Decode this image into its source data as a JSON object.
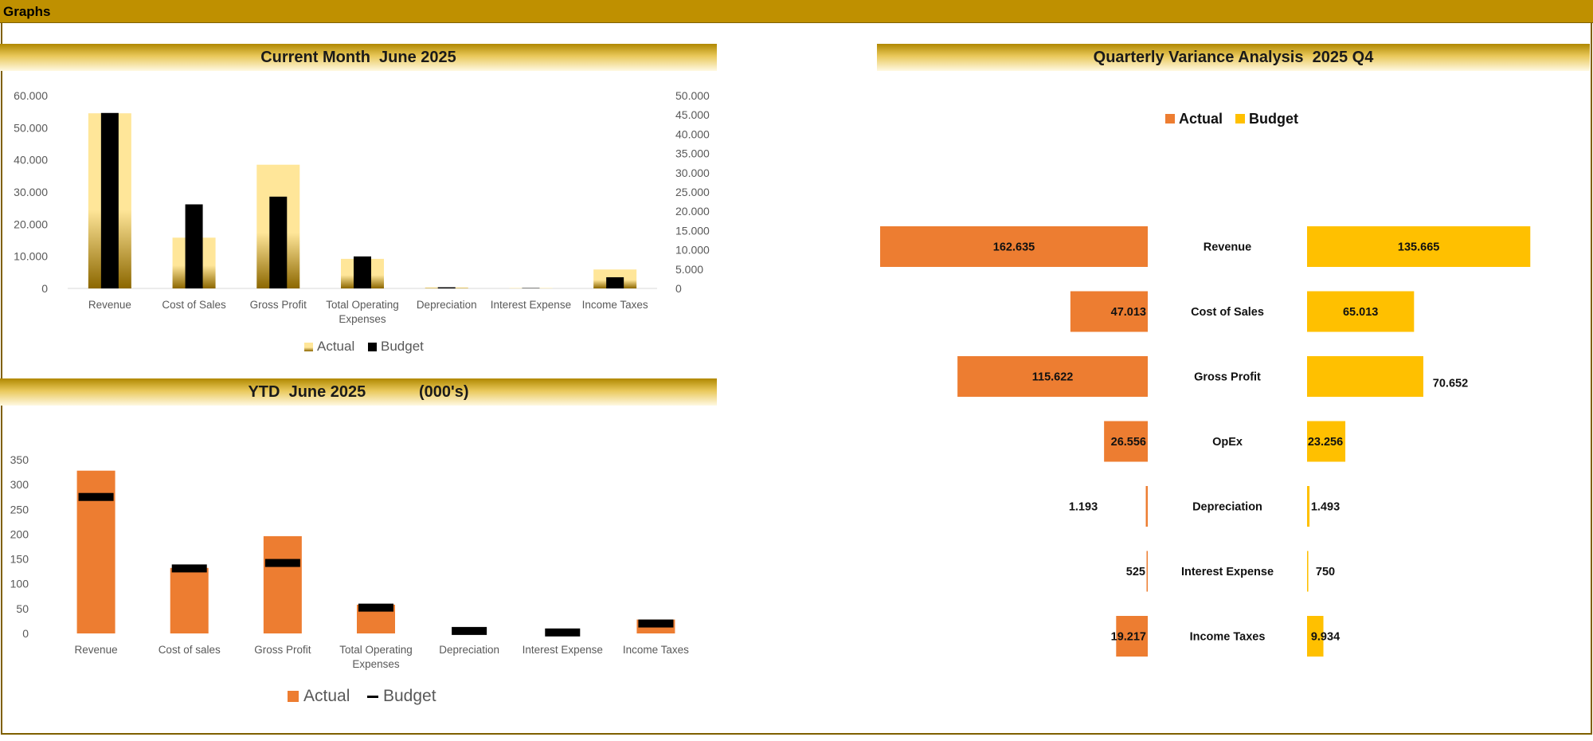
{
  "page_title": "Graphs",
  "colors": {
    "gold": "#bf9000",
    "orange": "#ed7d31",
    "yellow": "#ffc000",
    "black": "#000000"
  },
  "chart_data": [
    {
      "id": "current-month",
      "type": "bar",
      "title": "Current Month  June 2025",
      "categories": [
        "Revenue",
        "Cost of Sales",
        "Gross Profit",
        "Total Operating Expenses",
        "Depreciation",
        "Interest Expense",
        "Income Taxes"
      ],
      "y_left": {
        "ticks": [
          "0",
          "10.000",
          "20.000",
          "30.000",
          "40.000",
          "50.000",
          "60.000"
        ],
        "ylim": [
          0,
          60000
        ]
      },
      "y_right": {
        "ticks": [
          "0",
          "5.000",
          "10.000",
          "15.000",
          "20.000",
          "25.000",
          "30.000",
          "35.000",
          "40.000",
          "45.000",
          "50.000"
        ],
        "ylim": [
          0,
          50000
        ]
      },
      "series": [
        {
          "name": "Actual",
          "axis": "left",
          "values": [
            54500,
            15800,
            38500,
            9200,
            300,
            120,
            5900
          ]
        },
        {
          "name": "Budget",
          "axis": "right",
          "values": [
            45500,
            21800,
            23800,
            8300,
            300,
            100,
            2900
          ]
        }
      ],
      "legend": [
        "Actual",
        "Budget"
      ],
      "legend_position": "bottom"
    },
    {
      "id": "ytd",
      "type": "bar",
      "title": "YTD  June 2025            (000's)",
      "categories": [
        "Revenue",
        "Cost of sales",
        "Gross Profit",
        "Total Operating Expenses",
        "Depreciation",
        "Interest Expense",
        "Income Taxes"
      ],
      "y_ticks": [
        "0",
        "50",
        "100",
        "150",
        "200",
        "250",
        "300",
        "350"
      ],
      "ylim": [
        0,
        350
      ],
      "series": [
        {
          "name": "Actual",
          "values": [
            328,
            132,
            196,
            58,
            0,
            0,
            28
          ]
        },
        {
          "name": "Budget",
          "values": [
            275,
            131,
            142,
            52,
            5,
            2,
            20
          ]
        }
      ],
      "legend": [
        "Actual",
        "Budget"
      ],
      "legend_position": "bottom"
    },
    {
      "id": "quarterly-variance",
      "type": "bar",
      "orientation": "horizontal-butterfly",
      "title": "Quarterly Variance Analysis  2025 Q4",
      "categories": [
        "Revenue",
        "Cost of Sales",
        "Gross Profit",
        "OpEx",
        "Depreciation",
        "Interest Expense",
        "Income Taxes"
      ],
      "series": [
        {
          "name": "Actual",
          "values": [
            162635,
            47013,
            115622,
            26556,
            1193,
            525,
            19217
          ],
          "labels": [
            "162.635",
            "47.013",
            "115.622",
            "26.556",
            "1.193",
            "525",
            "19.217"
          ]
        },
        {
          "name": "Budget",
          "values": [
            135665,
            65013,
            70652,
            23256,
            1493,
            750,
            9934
          ],
          "labels": [
            "135.665",
            "65.013",
            "70.652",
            "23.256",
            "1.493",
            "750",
            "9.934"
          ]
        }
      ],
      "legend": [
        "Actual",
        "Budget"
      ],
      "legend_position": "top"
    }
  ]
}
